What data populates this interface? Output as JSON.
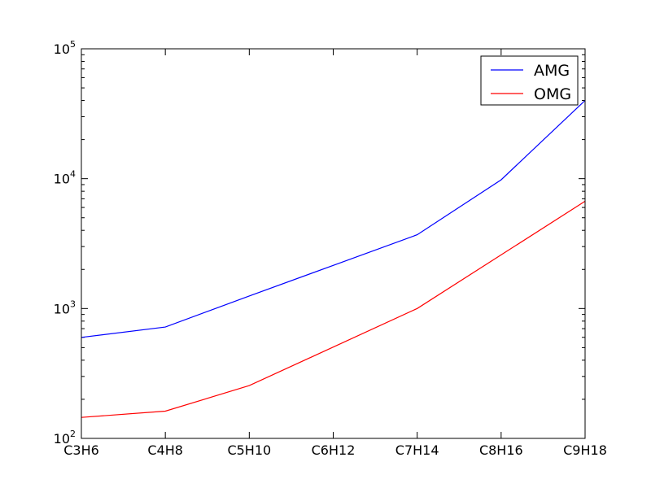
{
  "chart_data": {
    "type": "line",
    "title": "",
    "xlabel": "",
    "ylabel": "",
    "categories": [
      "C3H6",
      "C4H8",
      "C5H10",
      "C6H12",
      "C7H14",
      "C8H16",
      "C9H18"
    ],
    "y_scale": "log",
    "ylim": [
      100,
      100000
    ],
    "yticks": [
      {
        "value": 100,
        "base": "10",
        "exp": "2"
      },
      {
        "value": 1000,
        "base": "10",
        "exp": "3"
      },
      {
        "value": 10000,
        "base": "10",
        "exp": "4"
      },
      {
        "value": 100000,
        "base": "10",
        "exp": "5"
      }
    ],
    "grid": false,
    "legend_position": "top-right",
    "series": [
      {
        "name": "AMG",
        "color": "#0000ff",
        "values": [
          600,
          720,
          1250,
          2150,
          3700,
          9800,
          40000
        ],
        "x_index": [
          0,
          1,
          2,
          3,
          4,
          5,
          6
        ]
      },
      {
        "name": "OMG",
        "color": "#ff0000",
        "values": [
          145,
          162,
          255,
          null,
          1000,
          null,
          6700
        ],
        "x_index": [
          0,
          1,
          2,
          3,
          4,
          5,
          6
        ]
      }
    ]
  }
}
